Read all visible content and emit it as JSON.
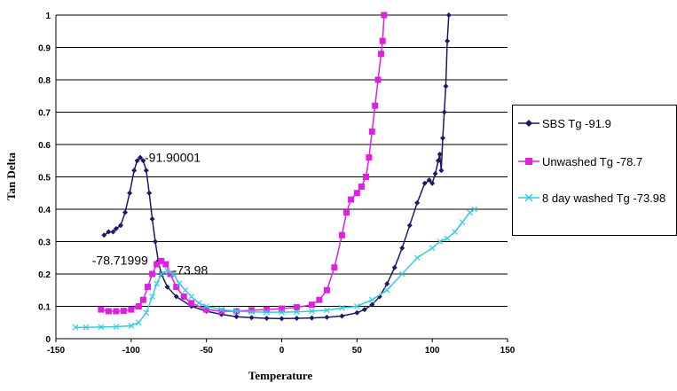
{
  "chart_data": {
    "type": "line",
    "title": "",
    "xlabel": "Temperature",
    "ylabel": "Tan Delta",
    "xlim": [
      -150,
      150
    ],
    "ylim": [
      0,
      1
    ],
    "x_ticks": [
      "-150",
      "-100",
      "-50",
      "0",
      "50",
      "100",
      "150"
    ],
    "y_ticks": [
      "0",
      "0.1",
      "0.2",
      "0.3",
      "0.4",
      "0.5",
      "0.6",
      "0.7",
      "0.8",
      "0.9",
      "1"
    ],
    "grid": "horizontal",
    "legend_position": "right",
    "series": [
      {
        "name": "SBS Tg -91.9",
        "color": "#1a1a66",
        "marker": "diamond",
        "points": [
          [
            -118,
            0.32
          ],
          [
            -115,
            0.33
          ],
          [
            -112,
            0.33
          ],
          [
            -110,
            0.34
          ],
          [
            -107,
            0.35
          ],
          [
            -104,
            0.39
          ],
          [
            -101,
            0.45
          ],
          [
            -98,
            0.52
          ],
          [
            -96,
            0.55
          ],
          [
            -94,
            0.56
          ],
          [
            -92,
            0.55
          ],
          [
            -90,
            0.52
          ],
          [
            -88,
            0.45
          ],
          [
            -86,
            0.37
          ],
          [
            -84,
            0.3
          ],
          [
            -82,
            0.24
          ],
          [
            -80,
            0.2
          ],
          [
            -76,
            0.16
          ],
          [
            -70,
            0.13
          ],
          [
            -60,
            0.1
          ],
          [
            -50,
            0.085
          ],
          [
            -40,
            0.075
          ],
          [
            -30,
            0.068
          ],
          [
            -20,
            0.065
          ],
          [
            -10,
            0.063
          ],
          [
            0,
            0.062
          ],
          [
            10,
            0.063
          ],
          [
            20,
            0.064
          ],
          [
            30,
            0.066
          ],
          [
            40,
            0.07
          ],
          [
            50,
            0.08
          ],
          [
            55,
            0.09
          ],
          [
            60,
            0.105
          ],
          [
            65,
            0.13
          ],
          [
            70,
            0.17
          ],
          [
            75,
            0.22
          ],
          [
            80,
            0.28
          ],
          [
            85,
            0.35
          ],
          [
            90,
            0.42
          ],
          [
            95,
            0.48
          ],
          [
            98,
            0.49
          ],
          [
            100,
            0.48
          ],
          [
            102,
            0.51
          ],
          [
            104,
            0.55
          ],
          [
            105,
            0.57
          ],
          [
            106,
            0.52
          ],
          [
            107,
            0.62
          ],
          [
            108,
            0.7
          ],
          [
            109,
            0.78
          ],
          [
            110,
            0.92
          ],
          [
            111,
            1.0
          ]
        ]
      },
      {
        "name": "Unwashed Tg -78.7",
        "color": "#e020e0",
        "marker": "square",
        "points": [
          [
            -120,
            0.09
          ],
          [
            -115,
            0.085
          ],
          [
            -110,
            0.085
          ],
          [
            -105,
            0.086
          ],
          [
            -100,
            0.09
          ],
          [
            -95,
            0.1
          ],
          [
            -92,
            0.12
          ],
          [
            -89,
            0.16
          ],
          [
            -86,
            0.2
          ],
          [
            -83,
            0.23
          ],
          [
            -80,
            0.24
          ],
          [
            -77,
            0.23
          ],
          [
            -74,
            0.2
          ],
          [
            -70,
            0.16
          ],
          [
            -65,
            0.13
          ],
          [
            -60,
            0.11
          ],
          [
            -50,
            0.09
          ],
          [
            -40,
            0.085
          ],
          [
            -30,
            0.085
          ],
          [
            -20,
            0.088
          ],
          [
            -10,
            0.09
          ],
          [
            0,
            0.093
          ],
          [
            10,
            0.097
          ],
          [
            20,
            0.105
          ],
          [
            25,
            0.12
          ],
          [
            30,
            0.15
          ],
          [
            35,
            0.22
          ],
          [
            40,
            0.32
          ],
          [
            43,
            0.39
          ],
          [
            46,
            0.43
          ],
          [
            50,
            0.45
          ],
          [
            53,
            0.47
          ],
          [
            56,
            0.5
          ],
          [
            58,
            0.56
          ],
          [
            60,
            0.64
          ],
          [
            62,
            0.72
          ],
          [
            64,
            0.8
          ],
          [
            66,
            0.88
          ],
          [
            67,
            0.92
          ],
          [
            68,
            1.0
          ]
        ]
      },
      {
        "name": "8 day washed Tg -73.98",
        "color": "#33ccdd",
        "marker": "cross",
        "points": [
          [
            -137,
            0.035
          ],
          [
            -130,
            0.035
          ],
          [
            -120,
            0.036
          ],
          [
            -110,
            0.037
          ],
          [
            -100,
            0.04
          ],
          [
            -95,
            0.05
          ],
          [
            -90,
            0.08
          ],
          [
            -86,
            0.13
          ],
          [
            -83,
            0.17
          ],
          [
            -80,
            0.2
          ],
          [
            -76,
            0.21
          ],
          [
            -72,
            0.2
          ],
          [
            -68,
            0.17
          ],
          [
            -64,
            0.15
          ],
          [
            -60,
            0.13
          ],
          [
            -55,
            0.11
          ],
          [
            -50,
            0.1
          ],
          [
            -40,
            0.09
          ],
          [
            -30,
            0.085
          ],
          [
            -20,
            0.083
          ],
          [
            -10,
            0.082
          ],
          [
            0,
            0.082
          ],
          [
            10,
            0.083
          ],
          [
            20,
            0.085
          ],
          [
            30,
            0.088
          ],
          [
            40,
            0.095
          ],
          [
            50,
            0.1
          ],
          [
            60,
            0.12
          ],
          [
            70,
            0.15
          ],
          [
            80,
            0.2
          ],
          [
            90,
            0.25
          ],
          [
            100,
            0.28
          ],
          [
            105,
            0.3
          ],
          [
            110,
            0.31
          ],
          [
            115,
            0.33
          ],
          [
            120,
            0.36
          ],
          [
            125,
            0.39
          ],
          [
            128,
            0.4
          ]
        ]
      }
    ],
    "annotations": [
      {
        "text": "-91.90001",
        "x": -94,
        "y": 0.56
      },
      {
        "text": "-78.71999",
        "x": -80,
        "y": 0.24
      },
      {
        "text": "-73.98",
        "x": -76,
        "y": 0.21
      }
    ]
  }
}
